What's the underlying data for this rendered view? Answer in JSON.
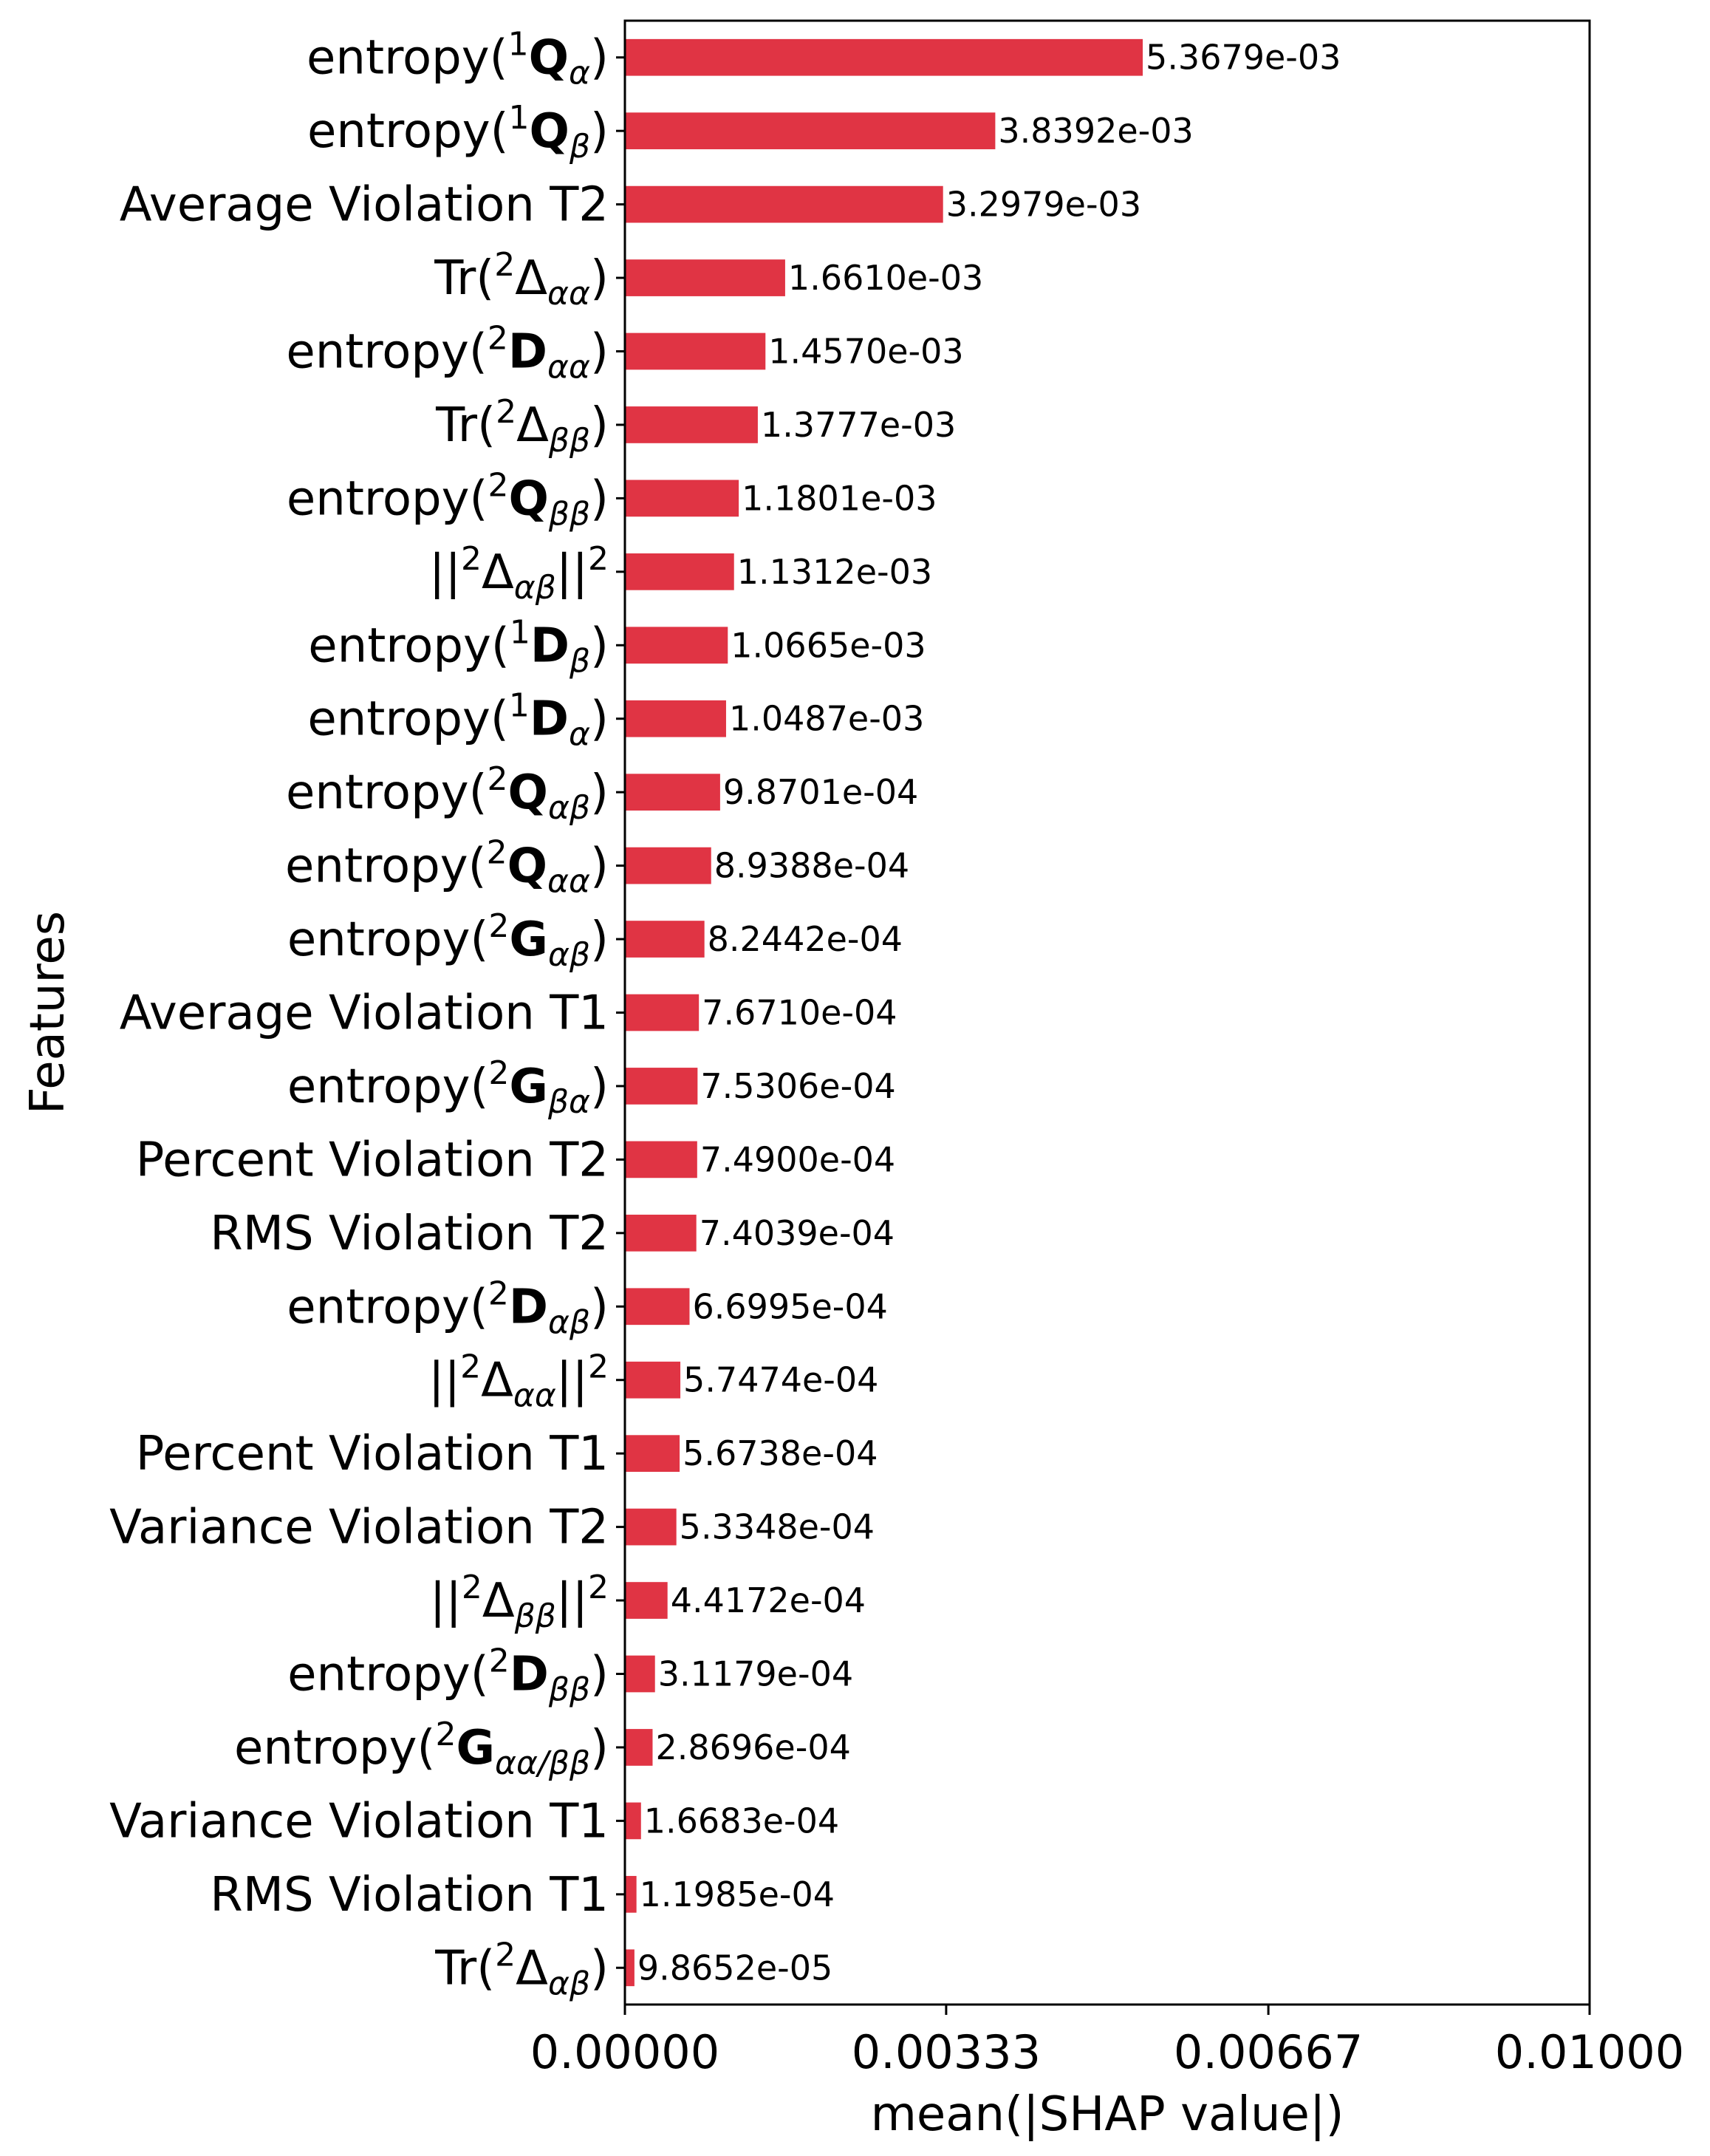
{
  "chart_data": {
    "type": "bar",
    "orientation": "horizontal",
    "xlabel": "mean(|SHAP value|)",
    "ylabel": "Features",
    "xlim": [
      0,
      0.01
    ],
    "xticks": [
      0,
      0.00333,
      0.00667,
      0.01
    ],
    "xtick_labels": [
      "0.00000",
      "0.00333",
      "0.00667",
      "0.01000"
    ],
    "bar_color": "#e03444",
    "grid": false,
    "categories": [
      [
        "entropy(",
        {
          "sup": "1"
        },
        {
          "b": "Q"
        },
        {
          "sub": "α"
        },
        ")"
      ],
      [
        "entropy(",
        {
          "sup": "1"
        },
        {
          "b": "Q"
        },
        {
          "sub": "β"
        },
        ")"
      ],
      [
        "Average Violation T2"
      ],
      [
        "Tr(",
        {
          "sup": "2"
        },
        "Δ",
        {
          "sub": "αα"
        },
        ")"
      ],
      [
        "entropy(",
        {
          "sup": "2"
        },
        {
          "b": "D"
        },
        {
          "sub": "αα"
        },
        ")"
      ],
      [
        "Tr(",
        {
          "sup": "2"
        },
        "Δ",
        {
          "sub": "ββ"
        },
        ")"
      ],
      [
        "entropy(",
        {
          "sup": "2"
        },
        {
          "b": "Q"
        },
        {
          "sub": "ββ"
        },
        ")"
      ],
      [
        "||",
        {
          "sup": "2"
        },
        "Δ",
        {
          "sub": "αβ"
        },
        "||",
        {
          "sup": "2"
        }
      ],
      [
        "entropy(",
        {
          "sup": "1"
        },
        {
          "b": "D"
        },
        {
          "sub": "β"
        },
        ")"
      ],
      [
        "entropy(",
        {
          "sup": "1"
        },
        {
          "b": "D"
        },
        {
          "sub": "α"
        },
        ")"
      ],
      [
        "entropy(",
        {
          "sup": "2"
        },
        {
          "b": "Q"
        },
        {
          "sub": "αβ"
        },
        ")"
      ],
      [
        "entropy(",
        {
          "sup": "2"
        },
        {
          "b": "Q"
        },
        {
          "sub": "αα"
        },
        ")"
      ],
      [
        "entropy(",
        {
          "sup": "2"
        },
        {
          "b": "G"
        },
        {
          "sub": "αβ"
        },
        ")"
      ],
      [
        "Average Violation T1"
      ],
      [
        "entropy(",
        {
          "sup": "2"
        },
        {
          "b": "G"
        },
        {
          "sub": "βα"
        },
        ")"
      ],
      [
        "Percent Violation T2"
      ],
      [
        "RMS Violation T2"
      ],
      [
        "entropy(",
        {
          "sup": "2"
        },
        {
          "b": "D"
        },
        {
          "sub": "αβ"
        },
        ")"
      ],
      [
        "||",
        {
          "sup": "2"
        },
        "Δ",
        {
          "sub": "αα"
        },
        "||",
        {
          "sup": "2"
        }
      ],
      [
        "Percent Violation T1"
      ],
      [
        "Variance Violation T2"
      ],
      [
        "||",
        {
          "sup": "2"
        },
        "Δ",
        {
          "sub": "ββ"
        },
        "||",
        {
          "sup": "2"
        }
      ],
      [
        "entropy(",
        {
          "sup": "2"
        },
        {
          "b": "D"
        },
        {
          "sub": "ββ"
        },
        ")"
      ],
      [
        "entropy(",
        {
          "sup": "2"
        },
        {
          "b": "G"
        },
        {
          "sub": "αα/ββ"
        },
        ")"
      ],
      [
        "Variance Violation T1"
      ],
      [
        "RMS Violation T1"
      ],
      [
        "Tr(",
        {
          "sup": "2"
        },
        "Δ",
        {
          "sub": "αβ"
        },
        ")"
      ]
    ],
    "values": [
      0.0053679,
      0.0038392,
      0.0032979,
      0.001661,
      0.001457,
      0.0013777,
      0.0011801,
      0.0011312,
      0.0010665,
      0.0010487,
      0.00098701,
      0.00089388,
      0.00082442,
      0.0007671,
      0.00075306,
      0.000749,
      0.00074039,
      0.00066995,
      0.00057474,
      0.00056738,
      0.00053348,
      0.00044172,
      0.00031179,
      0.00028696,
      0.00016683,
      0.00011985,
      9.8652e-05
    ],
    "value_labels": [
      "5.3679e-03",
      "3.8392e-03",
      "3.2979e-03",
      "1.6610e-03",
      "1.4570e-03",
      "1.3777e-03",
      "1.1801e-03",
      "1.1312e-03",
      "1.0665e-03",
      "1.0487e-03",
      "9.8701e-04",
      "8.9388e-04",
      "8.2442e-04",
      "7.6710e-04",
      "7.5306e-04",
      "7.4900e-04",
      "7.4039e-04",
      "6.6995e-04",
      "5.7474e-04",
      "5.6738e-04",
      "5.3348e-04",
      "4.4172e-04",
      "3.1179e-04",
      "2.8696e-04",
      "1.6683e-04",
      "1.1985e-04",
      "9.8652e-05"
    ]
  }
}
